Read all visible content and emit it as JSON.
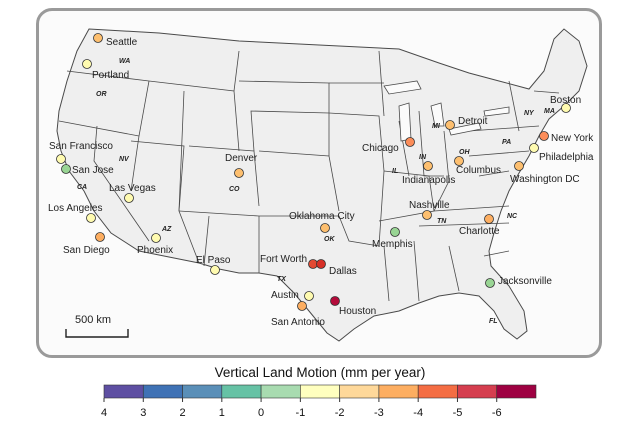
{
  "map": {
    "scale_bar_label": "500 km",
    "colors": {
      "land": "#efefef",
      "state_border": "#4a4a4a",
      "lakes": "#fbfbfb",
      "frame": "#9a9a9a"
    },
    "states": [
      "WA",
      "OR",
      "CA",
      "NV",
      "AZ",
      "CO",
      "OK",
      "TX",
      "IL",
      "IN",
      "OH",
      "MI",
      "TN",
      "NC",
      "FL",
      "PA",
      "NY",
      "MA"
    ],
    "cities": [
      {
        "name": "Seattle",
        "vlm": -2,
        "color": "#fdbf6f"
      },
      {
        "name": "Portland",
        "vlm": -0.5,
        "color": "#fffbb0"
      },
      {
        "name": "San Francisco",
        "vlm": -0.5,
        "color": "#fffbb0"
      },
      {
        "name": "San Jose",
        "vlm": 1.2,
        "color": "#99d594"
      },
      {
        "name": "Las Vegas",
        "vlm": -0.5,
        "color": "#fffbb0"
      },
      {
        "name": "Los Angeles",
        "vlm": -0.5,
        "color": "#fffbb0"
      },
      {
        "name": "San Diego",
        "vlm": -2.5,
        "color": "#fdae61"
      },
      {
        "name": "Phoenix",
        "vlm": -0.5,
        "color": "#fffbb0"
      },
      {
        "name": "Denver",
        "vlm": -2,
        "color": "#fdbf6f"
      },
      {
        "name": "El Paso",
        "vlm": -0.5,
        "color": "#fffbb0"
      },
      {
        "name": "Oklahoma City",
        "vlm": -2,
        "color": "#fdbf6f"
      },
      {
        "name": "Fort Worth",
        "vlm": -5,
        "color": "#e34a33"
      },
      {
        "name": "Dallas",
        "vlm": -5,
        "color": "#d73027"
      },
      {
        "name": "Austin",
        "vlm": -0.5,
        "color": "#fffbb0"
      },
      {
        "name": "San Antonio",
        "vlm": -2.5,
        "color": "#fdae61"
      },
      {
        "name": "Houston",
        "vlm": -6,
        "color": "#b30b3a"
      },
      {
        "name": "Memphis",
        "vlm": 1.2,
        "color": "#99d594"
      },
      {
        "name": "Chicago",
        "vlm": -3.5,
        "color": "#fc8d59"
      },
      {
        "name": "Indianapolis",
        "vlm": -2,
        "color": "#fdbf6f"
      },
      {
        "name": "Detroit",
        "vlm": -2,
        "color": "#fdbf6f"
      },
      {
        "name": "Columbus",
        "vlm": -2,
        "color": "#fdbf6f"
      },
      {
        "name": "Nashville",
        "vlm": -2,
        "color": "#fdbf6f"
      },
      {
        "name": "Charlotte",
        "vlm": -2.5,
        "color": "#fdae61"
      },
      {
        "name": "Jacksonville",
        "vlm": 1.2,
        "color": "#99d594"
      },
      {
        "name": "Washington DC",
        "vlm": -2,
        "color": "#fdbf6f"
      },
      {
        "name": "Philadelphia",
        "vlm": -0.5,
        "color": "#fffbb0"
      },
      {
        "name": "New York",
        "vlm": -3.5,
        "color": "#fc8d59"
      },
      {
        "name": "Boston",
        "vlm": -0.5,
        "color": "#fffbb0"
      }
    ]
  },
  "legend": {
    "title": "Vertical Land Motion (mm per year)",
    "ticks": [
      "4",
      "3",
      "2",
      "1",
      "0",
      "-1",
      "-2",
      "-3",
      "-4",
      "-5",
      "-6"
    ],
    "bins": [
      {
        "color": "#5e4fa2"
      },
      {
        "color": "#3f72b5"
      },
      {
        "color": "#5a8fb8"
      },
      {
        "color": "#66c2a5"
      },
      {
        "color": "#a8dbb0"
      },
      {
        "color": "#ffffbf"
      },
      {
        "color": "#fed89a"
      },
      {
        "color": "#fdae61"
      },
      {
        "color": "#f46d43"
      },
      {
        "color": "#d53e4f"
      },
      {
        "color": "#9e0142"
      }
    ]
  }
}
